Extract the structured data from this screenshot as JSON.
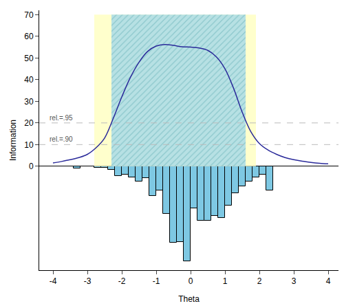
{
  "chart_data": {
    "type": "combo",
    "x_title": "Theta",
    "y_title": "Information",
    "xlim": [
      -4.4,
      4.3
    ],
    "xticks": [
      -4,
      -3,
      -2,
      -1,
      0,
      1,
      2,
      3,
      4
    ],
    "ylim": [
      -48,
      72
    ],
    "yticks": [
      0,
      10,
      20,
      30,
      40,
      50,
      60,
      70
    ],
    "grid": false,
    "bands": [
      {
        "x": [
          -2.8,
          1.9
        ],
        "y": [
          0,
          70
        ],
        "color": "#ffffcc",
        "marker": "solid"
      },
      {
        "x": [
          -2.3,
          1.6
        ],
        "y": [
          0,
          70
        ],
        "color": "#b7e1e4",
        "marker": "hatched"
      }
    ],
    "reference_lines": [
      {
        "y": 20,
        "label": "rel.=.95",
        "color": "#bbbbbb",
        "line_style": "dash"
      },
      {
        "y": 10,
        "label": "rel.=.90",
        "color": "#bbbbbb",
        "line_style": "dash"
      }
    ],
    "curve": {
      "type": "line",
      "color": "#2a2a9a",
      "x": [
        -4,
        -3.75,
        -3.5,
        -3.25,
        -3,
        -2.75,
        -2.5,
        -2.25,
        -2,
        -1.75,
        -1.5,
        -1.25,
        -1,
        -0.75,
        -0.5,
        -0.25,
        0,
        0.25,
        0.5,
        0.75,
        1,
        1.25,
        1.5,
        1.75,
        2,
        2.25,
        2.5,
        2.75,
        3,
        3.25,
        3.5,
        3.75,
        4
      ],
      "values": [
        1.5,
        2.2,
        3,
        4,
        5.5,
        8.5,
        13,
        22,
        32,
        41,
        48,
        53,
        55.5,
        56.2,
        55.8,
        55.2,
        55,
        54.6,
        53.5,
        50.5,
        45,
        36,
        25,
        16,
        10.5,
        7.5,
        5.5,
        4,
        3,
        2.3,
        1.8,
        1.4,
        1.1
      ]
    },
    "histogram": {
      "type": "bar",
      "color": "#7ec8e3",
      "bins": [
        -3.4,
        -3.2,
        -3.0,
        -2.8,
        -2.6,
        -2.4,
        -2.2,
        -2.0,
        -1.8,
        -1.6,
        -1.4,
        -1.2,
        -1.0,
        -0.8,
        -0.6,
        -0.4,
        -0.2,
        0.0,
        0.2,
        0.4,
        0.6,
        0.8,
        1.0,
        1.2,
        1.4,
        1.6,
        1.8,
        2.0,
        2.2,
        2.4
      ],
      "counts": [
        -1,
        0,
        0,
        -0.6,
        -0.6,
        -1.5,
        -4.4,
        -3.8,
        -5,
        -7,
        -5.6,
        -13.8,
        -11.3,
        -22,
        -35.4,
        -35,
        -44,
        -19.4,
        -25,
        -25,
        -23,
        -24,
        -18,
        -12.5,
        -9.4,
        -7,
        -5,
        -3.8,
        -11.3
      ]
    }
  }
}
